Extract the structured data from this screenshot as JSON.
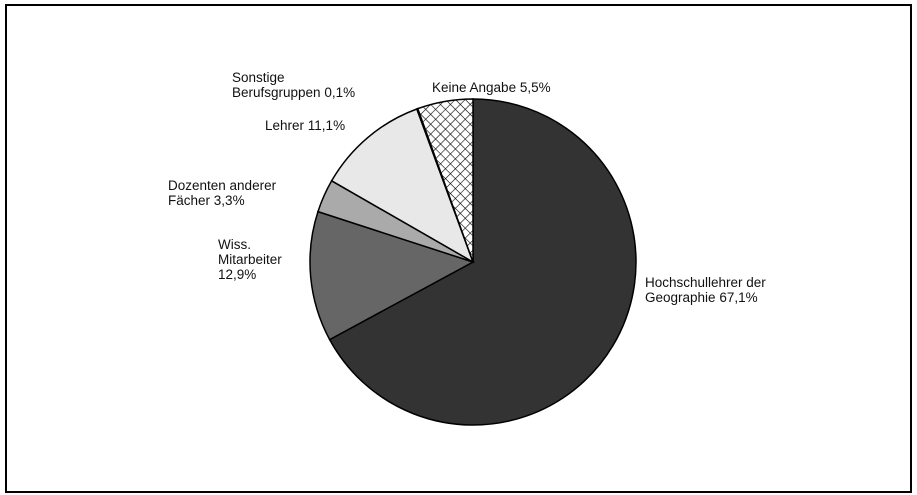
{
  "chart_data": {
    "type": "pie",
    "categories": [
      "Hochschullehrer der Geographie",
      "Wiss. Mitarbeiter",
      "Dozenten anderer Fächer",
      "Lehrer",
      "Sonstige Berufsgruppen",
      "Keine Angabe"
    ],
    "values": [
      67.1,
      12.9,
      3.3,
      11.1,
      0.1,
      5.5
    ],
    "value_labels": [
      "67,1%",
      "12,9%",
      "3,3%",
      "11,1%",
      "0,1%",
      "5,5%"
    ],
    "colors": [
      "#333333",
      "#666666",
      "#aaaaaa",
      "#e8e8e8",
      "#ffffff",
      "crosshatch"
    ]
  }
}
